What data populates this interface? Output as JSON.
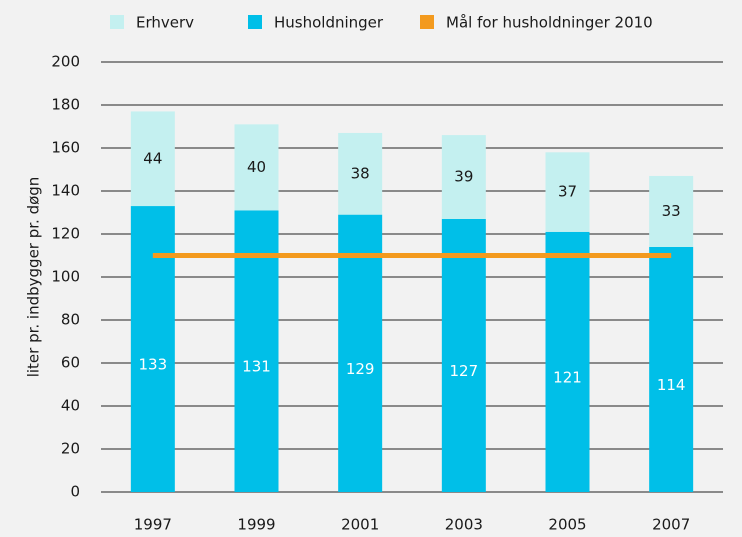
{
  "chart_data": {
    "type": "bar",
    "stacked": true,
    "y_label": "liter pr. indbygger pr. døgn",
    "categories": [
      "1997",
      "1999",
      "2001",
      "2003",
      "2005",
      "2007"
    ],
    "series": [
      {
        "name": "Husholdninger",
        "color": "#00bfe8",
        "values": [
          133,
          131,
          129,
          127,
          121,
          114
        ]
      },
      {
        "name": "Erhverv",
        "color": "#c4f0f0",
        "values": [
          44,
          40,
          38,
          39,
          37,
          33
        ]
      },
      {
        "name": "Mål for husholdninger 2010",
        "color": "#f39a1e",
        "type": "line",
        "values": [
          110,
          110,
          110,
          110,
          110,
          110
        ]
      }
    ],
    "legend_order": [
      1,
      0,
      2
    ],
    "ylim": [
      0,
      200
    ],
    "yticks": [
      0,
      20,
      40,
      60,
      80,
      100,
      120,
      140,
      160,
      180,
      200
    ],
    "grid": true
  }
}
